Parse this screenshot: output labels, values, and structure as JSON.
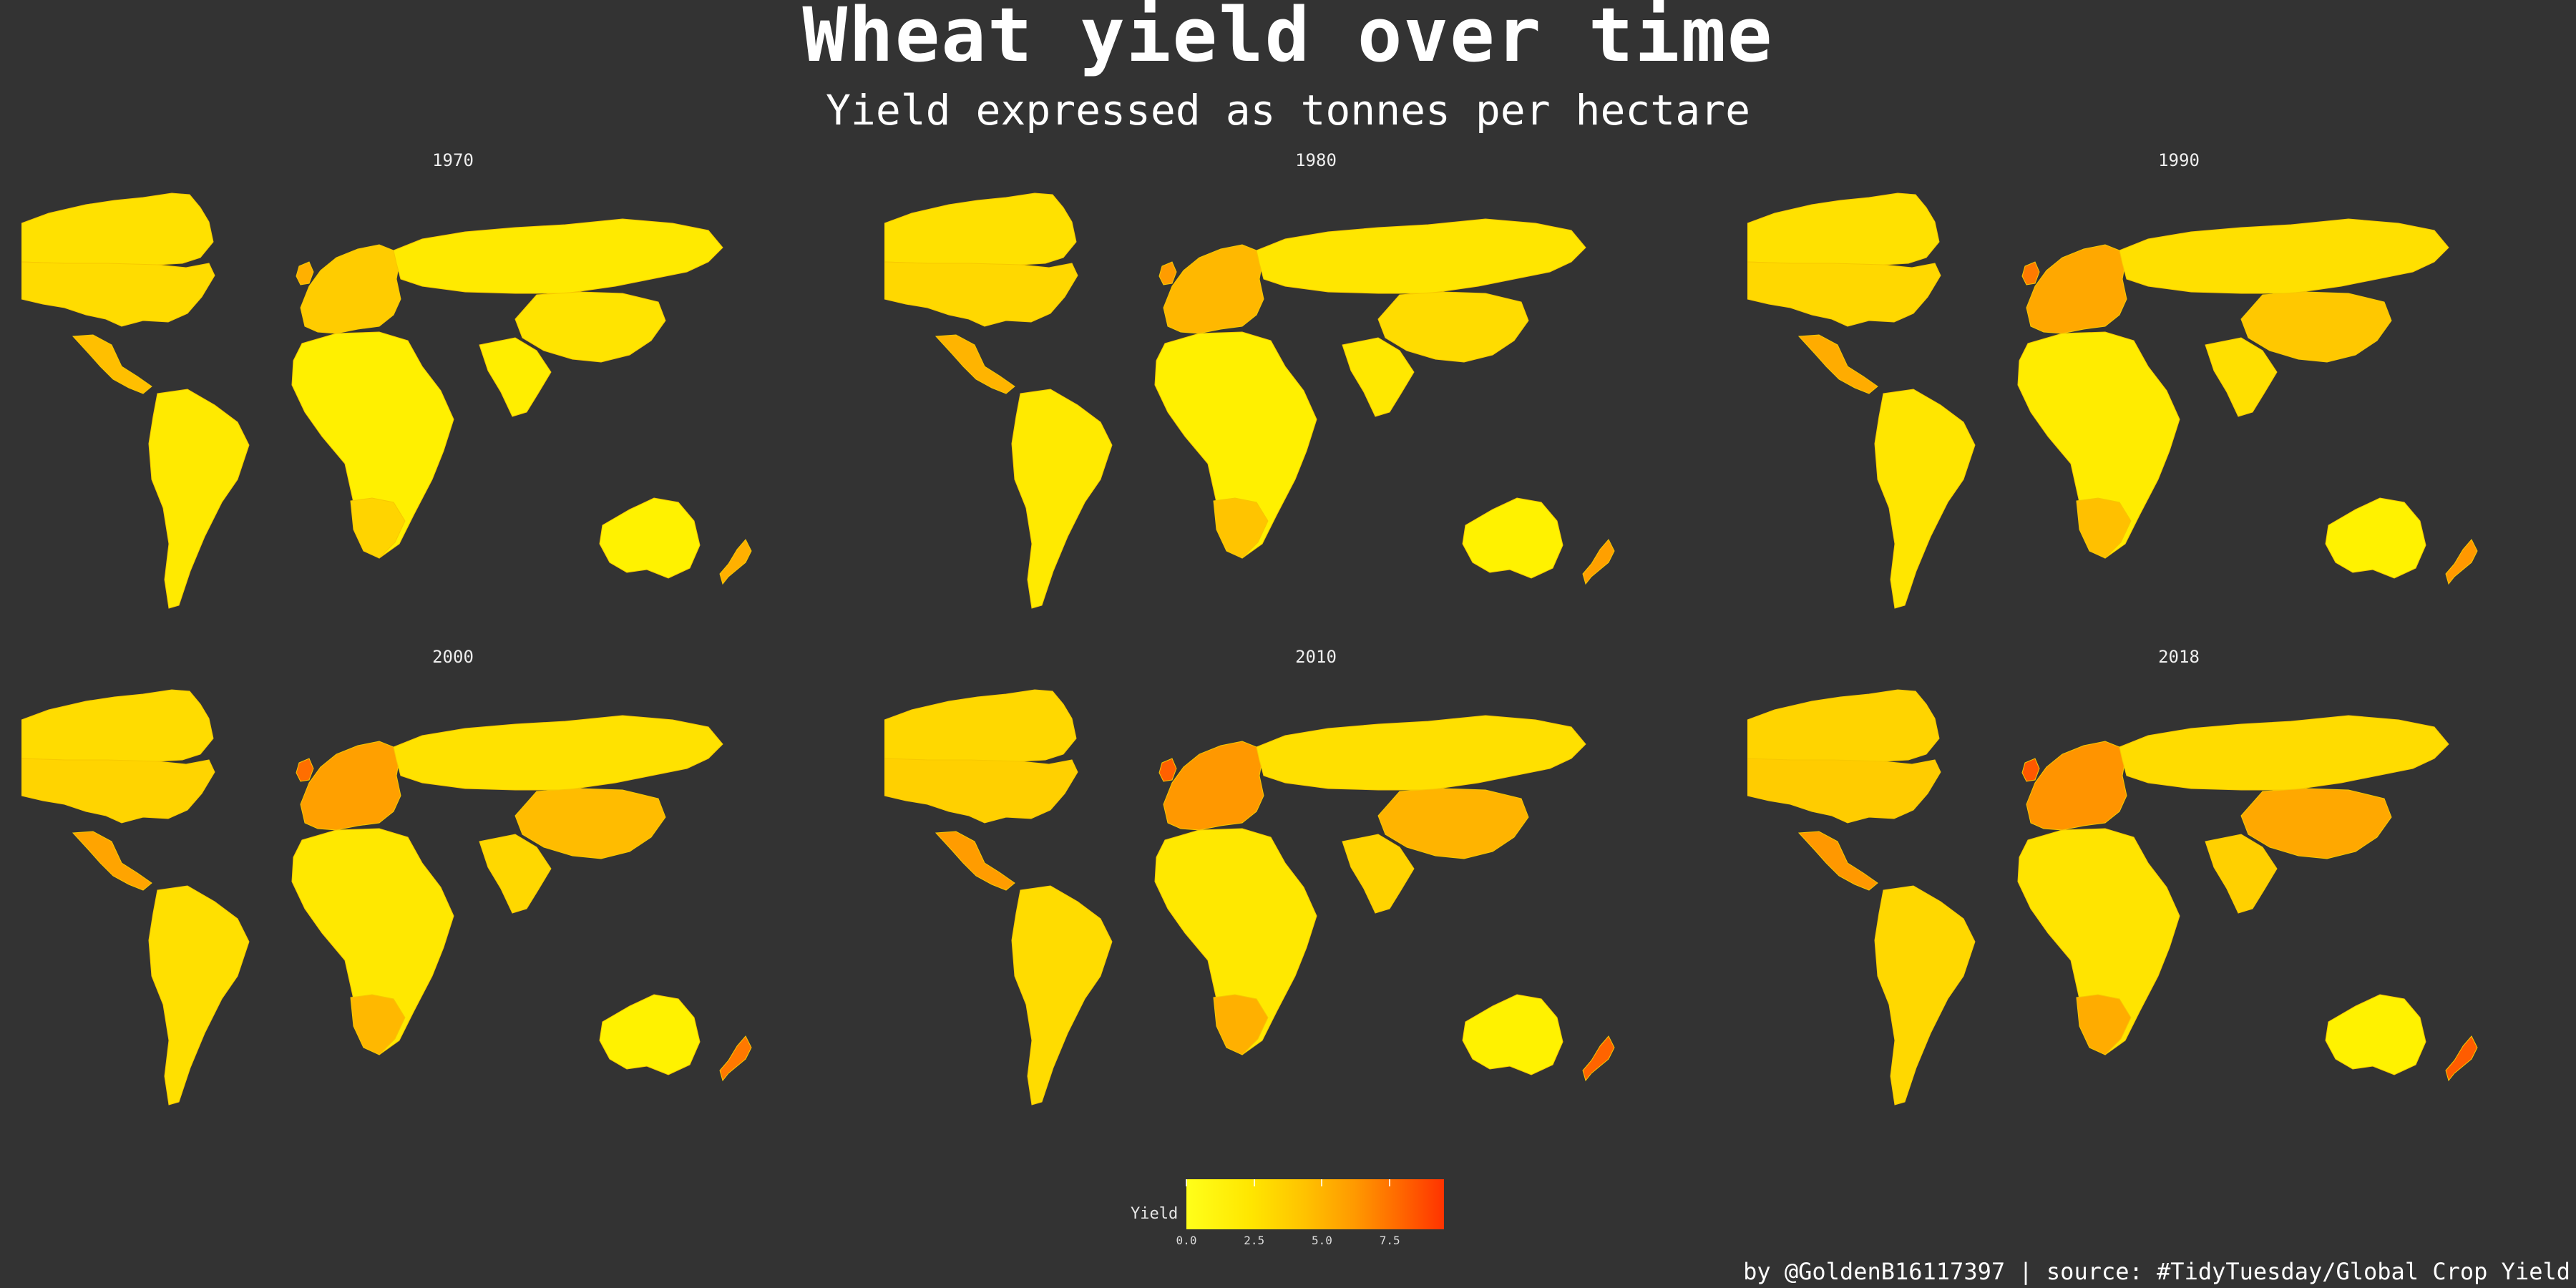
{
  "title": "Wheat yield over time",
  "subtitle": "Yield expressed as tonnes per hectare",
  "caption": "by @GoldenB16117397 | source: #TidyTuesday/Global Crop Yield",
  "panels": [
    {
      "year": "1970",
      "fills": {
        "canada": "#ffe100",
        "usa": "#ffdc00",
        "mexico": "#ffbf00",
        "southamerica": "#ffea00",
        "europe": "#ffcc00",
        "russia": "#ffea00",
        "china": "#ffe400",
        "india": "#ffee00",
        "africa": "#fff000",
        "southafrica": "#ffd400",
        "australia": "#fff200",
        "nz": "#ffb000",
        "uk": "#ffb000"
      }
    },
    {
      "year": "1980",
      "fills": {
        "canada": "#ffe100",
        "usa": "#ffd800",
        "mexico": "#ffb400",
        "southamerica": "#ffea00",
        "europe": "#ffb800",
        "russia": "#ffe600",
        "china": "#ffdc00",
        "india": "#ffe800",
        "africa": "#fff000",
        "southafrica": "#ffc400",
        "australia": "#fff200",
        "nz": "#ffa000",
        "uk": "#ff9c00"
      }
    },
    {
      "year": "1990",
      "fills": {
        "canada": "#ffe100",
        "usa": "#ffd800",
        "mexico": "#ffac00",
        "southamerica": "#ffe600",
        "europe": "#ffa800",
        "russia": "#ffe000",
        "china": "#ffc800",
        "india": "#ffe000",
        "africa": "#ffec00",
        "southafrica": "#ffc000",
        "australia": "#fff200",
        "nz": "#ff9800",
        "uk": "#ff7a00"
      }
    },
    {
      "year": "2000",
      "fills": {
        "canada": "#ffdc00",
        "usa": "#ffd400",
        "mexico": "#ffa400",
        "southamerica": "#ffe000",
        "europe": "#ffa000",
        "russia": "#ffe200",
        "china": "#ffbc00",
        "india": "#ffd800",
        "africa": "#ffe800",
        "southafrica": "#ffb800",
        "australia": "#fff200",
        "nz": "#ff7800",
        "uk": "#ff6e00"
      }
    },
    {
      "year": "2010",
      "fills": {
        "canada": "#ffd800",
        "usa": "#ffd000",
        "mexico": "#ff9c00",
        "southamerica": "#ffdc00",
        "europe": "#ff9800",
        "russia": "#ffe000",
        "china": "#ffb400",
        "india": "#ffd400",
        "africa": "#ffe800",
        "southafrica": "#ffb000",
        "australia": "#fff200",
        "nz": "#ff6400",
        "uk": "#ff6000"
      }
    },
    {
      "year": "2018",
      "fills": {
        "canada": "#ffd400",
        "usa": "#ffcc00",
        "mexico": "#ff9800",
        "southamerica": "#ffd800",
        "europe": "#ff9400",
        "russia": "#ffdc00",
        "china": "#ffa800",
        "india": "#ffd000",
        "africa": "#ffe400",
        "southafrica": "#ffac00",
        "australia": "#fff200",
        "nz": "#ff5c00",
        "uk": "#ff5800"
      }
    }
  ],
  "legend": {
    "title": "Yield",
    "ticks": [
      "0.0",
      "2.5",
      "5.0",
      "7.5"
    ],
    "tick_values": [
      0,
      2.5,
      5,
      7.5
    ],
    "range": [
      0,
      9.5
    ],
    "colors": [
      "#ffff1a",
      "#ffc400",
      "#ff9a00",
      "#ff3300"
    ]
  }
}
